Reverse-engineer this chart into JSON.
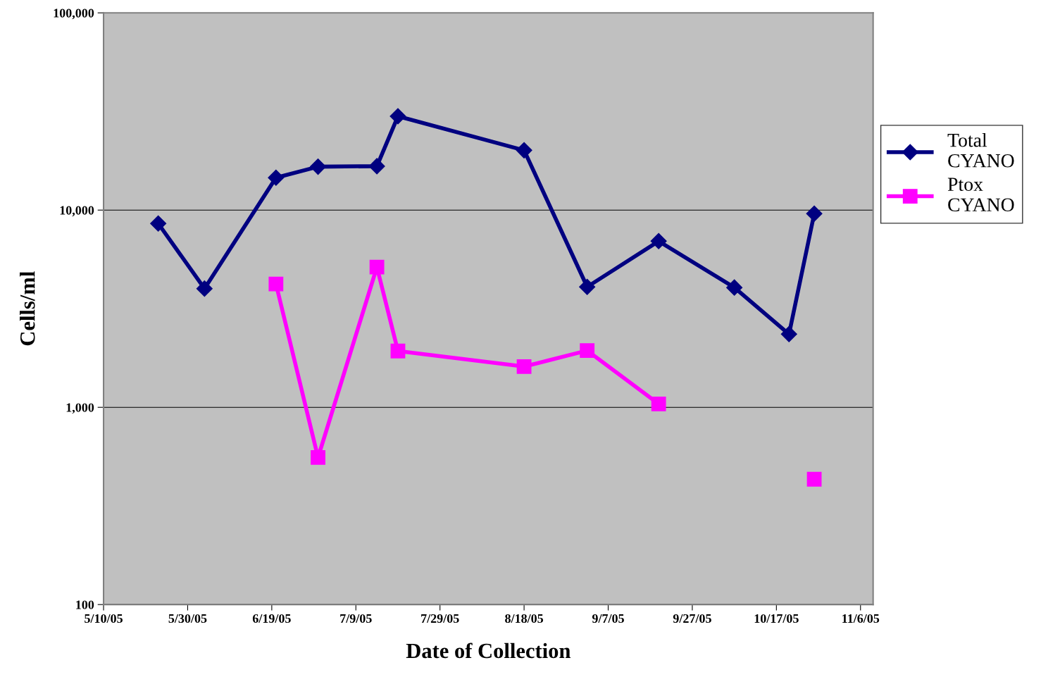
{
  "chart_data": {
    "type": "line",
    "xlabel": "Date of Collection",
    "ylabel": "Cells/ml",
    "log": "y",
    "grid": "y",
    "legend": "right",
    "x": [
      "2005-05-23",
      "2005-06-03",
      "2005-06-20",
      "2005-06-30",
      "2005-07-14",
      "2005-07-19",
      "2005-08-18",
      "2005-09-02",
      "2005-09-19",
      "2005-10-07",
      "2005-10-20",
      "2005-10-26"
    ],
    "series": [
      {
        "name": "Total CYANO",
        "color": "#000080",
        "marker": "diamond",
        "values": [
          8550,
          4000,
          14600,
          16600,
          16700,
          29900,
          20100,
          4080,
          6960,
          4050,
          2350,
          9600
        ]
      },
      {
        "name": "Ptox CYANO",
        "color": "#ff00ff",
        "marker": "square",
        "values": [
          null,
          null,
          4220,
          557,
          5140,
          1930,
          1610,
          1940,
          1040,
          null,
          null,
          432
        ]
      }
    ],
    "xlim": [
      "2005-05-10",
      "2005-11-09"
    ],
    "xticks": [
      {
        "value": "2005-05-10",
        "label": "5/10/05"
      },
      {
        "value": "2005-05-30",
        "label": "5/30/05"
      },
      {
        "value": "2005-06-19",
        "label": "6/19/05"
      },
      {
        "value": "2005-07-09",
        "label": "7/9/05"
      },
      {
        "value": "2005-07-29",
        "label": "7/29/05"
      },
      {
        "value": "2005-08-18",
        "label": "8/18/05"
      },
      {
        "value": "2005-09-07",
        "label": "9/7/05"
      },
      {
        "value": "2005-09-27",
        "label": "9/27/05"
      },
      {
        "value": "2005-10-17",
        "label": "10/17/05"
      },
      {
        "value": "2005-11-06",
        "label": "11/6/05"
      }
    ],
    "ylim": [
      100,
      100000
    ],
    "yticks": [
      {
        "value": 100,
        "label": "100"
      },
      {
        "value": 1000,
        "label": "1,000"
      },
      {
        "value": 10000,
        "label": "10,000"
      },
      {
        "value": 100000,
        "label": "100,000"
      }
    ]
  }
}
